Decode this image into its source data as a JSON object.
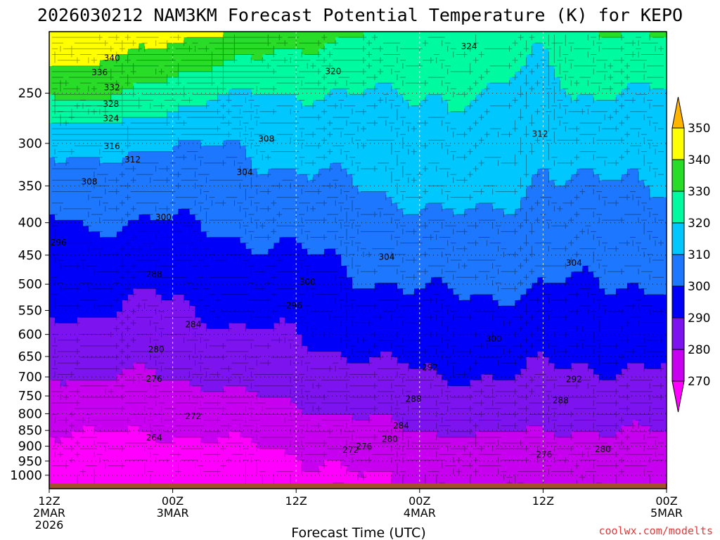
{
  "title": "2026030212 NAM3KM Forecast Potential Temperature (K) for KEPO",
  "credit": "coolwx.com/modelts",
  "chart_data": {
    "type": "heatmap",
    "title": "2026030212 NAM3KM Forecast Potential Temperature (K) for KEPO",
    "xlabel": "Forecast Time (UTC)",
    "ylabel": "",
    "x_range_hours": [
      0,
      60
    ],
    "y_range_hPa": [
      1050,
      200
    ],
    "y_ticks": [
      250,
      300,
      350,
      400,
      450,
      500,
      550,
      600,
      650,
      700,
      750,
      800,
      850,
      900,
      950,
      1000
    ],
    "x_ticks": [
      {
        "hour": 0,
        "lines": [
          "12Z",
          "2MAR",
          "2026"
        ]
      },
      {
        "hour": 12,
        "lines": [
          "00Z",
          "3MAR"
        ]
      },
      {
        "hour": 24,
        "lines": [
          "12Z"
        ]
      },
      {
        "hour": 36,
        "lines": [
          "00Z",
          "4MAR"
        ]
      },
      {
        "hour": 48,
        "lines": [
          "12Z"
        ]
      },
      {
        "hour": 60,
        "lines": [
          "00Z",
          "5MAR"
        ]
      }
    ],
    "colorbar": {
      "levels": [
        270,
        280,
        290,
        300,
        310,
        320,
        330,
        340,
        350
      ],
      "colors": [
        "#ff00ff",
        "#c800f0",
        "#7d14f0",
        "#0000fa",
        "#1e78ff",
        "#00c8ff",
        "#00faa0",
        "#28dc28",
        "#ffff00",
        "#ffb400"
      ]
    },
    "profile_pressure_hPa": [
      1050,
      1000,
      950,
      900,
      850,
      800,
      750,
      700,
      650,
      600,
      550,
      500,
      450,
      400,
      350,
      300,
      250,
      200
    ],
    "key_times_hours": [
      0,
      4,
      10,
      18,
      24,
      30,
      36,
      38,
      42,
      46,
      48,
      51,
      56,
      60
    ],
    "key_profiles_K": [
      [
        265,
        265,
        266,
        268,
        271,
        273,
        276,
        279,
        283,
        287,
        290,
        293,
        296,
        299,
        305,
        313,
        330,
        348
      ],
      [
        265,
        265,
        266,
        268,
        271,
        274,
        277,
        281,
        285,
        288,
        291,
        294,
        297,
        301,
        306,
        314,
        334,
        350
      ],
      [
        265,
        265,
        266,
        268,
        270,
        273,
        276,
        279,
        282,
        285,
        288,
        291,
        295,
        299,
        304,
        310,
        326,
        344
      ],
      [
        266,
        266,
        267,
        269,
        272,
        275,
        279,
        283,
        286,
        289,
        292,
        295,
        298,
        302,
        306,
        311,
        320,
        340
      ],
      [
        268,
        268,
        269,
        271,
        274,
        278,
        282,
        285,
        288,
        290,
        293,
        296,
        299,
        303,
        308,
        313,
        320,
        334
      ],
      [
        270,
        270,
        272,
        274,
        277,
        281,
        284,
        287,
        290,
        293,
        296,
        299,
        302,
        306,
        310,
        314,
        320,
        330
      ],
      [
        271,
        271,
        273,
        276,
        280,
        283,
        286,
        289,
        292,
        295,
        298,
        301,
        304,
        308,
        312,
        315,
        320,
        328
      ],
      [
        272,
        272,
        274,
        277,
        281,
        284,
        287,
        290,
        292,
        295,
        298,
        301,
        305,
        309,
        313,
        316,
        320,
        327
      ],
      [
        272,
        272,
        274,
        277,
        281,
        284,
        287,
        290,
        292,
        295,
        298,
        301,
        305,
        309,
        314,
        317,
        321,
        326
      ],
      [
        272,
        272,
        274,
        277,
        281,
        284,
        287,
        290,
        292,
        295,
        298,
        301,
        304,
        307,
        311,
        314,
        318,
        325
      ],
      [
        272,
        272,
        274,
        277,
        280,
        283,
        286,
        289,
        291,
        294,
        297,
        300,
        303,
        305,
        308,
        311,
        315,
        322
      ],
      [
        272,
        272,
        274,
        277,
        280,
        283,
        286,
        289,
        291,
        294,
        297,
        300,
        303,
        306,
        309,
        313,
        320,
        328
      ],
      [
        272,
        272,
        274,
        277,
        280,
        283,
        286,
        289,
        291,
        294,
        297,
        300,
        303,
        306,
        310,
        314,
        320,
        330
      ],
      [
        272,
        272,
        274,
        277,
        280,
        283,
        286,
        289,
        291,
        294,
        297,
        300,
        303,
        306,
        310,
        314,
        319,
        331
      ]
    ],
    "contour_labels": [
      {
        "value": "340",
        "hour": 6.1,
        "hPa": 220
      },
      {
        "value": "336",
        "hour": 4.9,
        "hPa": 232
      },
      {
        "value": "332",
        "hour": 6.1,
        "hPa": 245
      },
      {
        "value": "328",
        "hour": 6.0,
        "hPa": 260
      },
      {
        "value": "324",
        "hour": 6.0,
        "hPa": 274
      },
      {
        "value": "316",
        "hour": 6.1,
        "hPa": 303
      },
      {
        "value": "312",
        "hour": 8.1,
        "hPa": 318
      },
      {
        "value": "308",
        "hour": 3.9,
        "hPa": 345
      },
      {
        "value": "300",
        "hour": 11.1,
        "hPa": 392
      },
      {
        "value": "296",
        "hour": 0.9,
        "hPa": 430
      },
      {
        "value": "288",
        "hour": 10.2,
        "hPa": 482
      },
      {
        "value": "284",
        "hour": 14.0,
        "hPa": 579
      },
      {
        "value": "280",
        "hour": 10.4,
        "hPa": 634
      },
      {
        "value": "276",
        "hour": 10.2,
        "hPa": 705
      },
      {
        "value": "272",
        "hour": 14.0,
        "hPa": 807
      },
      {
        "value": "264",
        "hour": 10.2,
        "hPa": 873
      },
      {
        "value": "324",
        "hour": 40.8,
        "hPa": 211
      },
      {
        "value": "320",
        "hour": 27.6,
        "hPa": 231
      },
      {
        "value": "308",
        "hour": 21.1,
        "hPa": 295
      },
      {
        "value": "312",
        "hour": 47.7,
        "hPa": 290
      },
      {
        "value": "304",
        "hour": 19.0,
        "hPa": 333
      },
      {
        "value": "304",
        "hour": 32.8,
        "hPa": 453
      },
      {
        "value": "304",
        "hour": 51.0,
        "hPa": 463
      },
      {
        "value": "300",
        "hour": 25.1,
        "hPa": 496
      },
      {
        "value": "296",
        "hour": 23.8,
        "hPa": 540
      },
      {
        "value": "300",
        "hour": 43.2,
        "hPa": 610
      },
      {
        "value": "292",
        "hour": 37.0,
        "hPa": 676
      },
      {
        "value": "292",
        "hour": 51.0,
        "hPa": 706
      },
      {
        "value": "288",
        "hour": 35.4,
        "hPa": 758
      },
      {
        "value": "288",
        "hour": 49.7,
        "hPa": 762
      },
      {
        "value": "284",
        "hour": 34.2,
        "hPa": 836
      },
      {
        "value": "280",
        "hour": 33.1,
        "hPa": 877
      },
      {
        "value": "276",
        "hour": 30.6,
        "hPa": 901
      },
      {
        "value": "272",
        "hour": 29.3,
        "hPa": 912
      },
      {
        "value": "276",
        "hour": 48.1,
        "hPa": 928
      },
      {
        "value": "280",
        "hour": 53.8,
        "hPa": 910
      }
    ]
  }
}
